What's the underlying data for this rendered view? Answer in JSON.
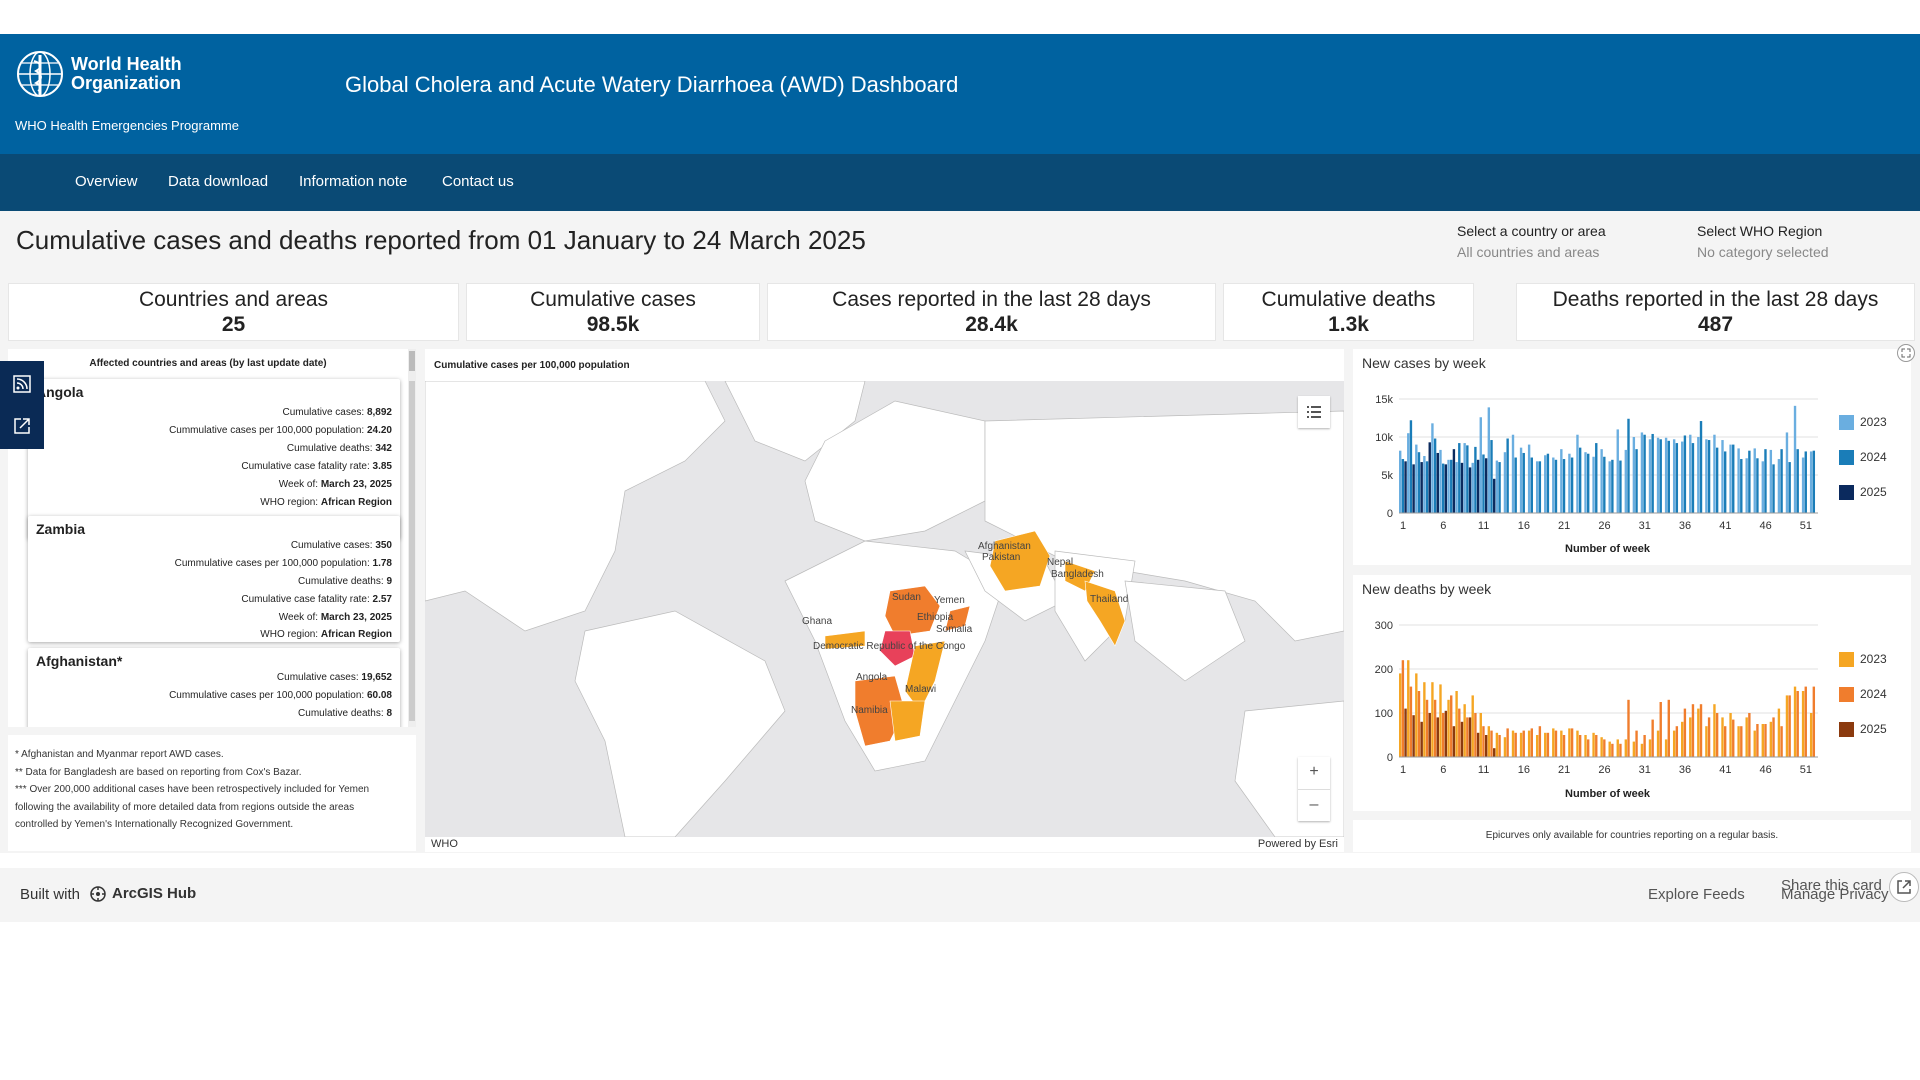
{
  "header": {
    "org_line1": "World Health",
    "org_line2": "Organization",
    "programme": "WHO Health Emergencies Programme",
    "title": "Global Cholera and Acute Watery Diarrhoea (AWD) Dashboard"
  },
  "nav": [
    "Overview",
    "Data download",
    "Information note",
    "Contact us"
  ],
  "page_title": "Cumulative cases and deaths reported from 01 January to 24 March 2025",
  "filters": {
    "country_label": "Select a country or area",
    "country_value": "All countries and areas",
    "region_label": "Select WHO Region",
    "region_value": "No category selected"
  },
  "stats": [
    {
      "label": "Countries and areas",
      "value": "25"
    },
    {
      "label": "Cumulative cases",
      "value": "98.5k"
    },
    {
      "label": "Cases reported in the last 28 days",
      "value": "28.4k"
    },
    {
      "label": "Cumulative deaths",
      "value": "1.3k"
    },
    {
      "label": "Deaths reported in the last 28 days",
      "value": "487"
    }
  ],
  "list": {
    "title": "Affected countries and areas (by last update date)",
    "cards": [
      {
        "name": "Angola",
        "cum_cases": "8,892",
        "per100k": "24.20",
        "deaths": "342",
        "cfr": "3.85",
        "week": "March 23, 2025",
        "region": "African Region"
      },
      {
        "name": "Zambia",
        "cum_cases": "350",
        "per100k": "1.78",
        "deaths": "9",
        "cfr": "2.57",
        "week": "March 23, 2025",
        "region": "African Region"
      },
      {
        "name": "Afghanistan*",
        "cum_cases": "19,652",
        "per100k": "60.08",
        "deaths": "8"
      }
    ],
    "labels": {
      "cum_cases": "Cumulative cases:",
      "per100k": "Cummulative cases per 100,000 population:",
      "deaths": "Cumulative deaths:",
      "cfr": "Cumulative case fatality rate:",
      "week": "Week of:",
      "region": "WHO region:"
    }
  },
  "notes": [
    "* Afghanistan and Myanmar report AWD cases.",
    "** Data for Bangladesh are based on reporting from Cox's Bazar.",
    "*** Over 200,000 additional cases have been retrospectively included for Yemen",
    "following the availability of more detailed data from regions outside the areas",
    "controlled by Yemen's Internationally Recognized Government."
  ],
  "map": {
    "title": "Cumulative cases per 100,000 population",
    "credit_left": "WHO",
    "credit_right": "Powered by Esri",
    "zoom_in": "+",
    "zoom_out": "–",
    "labels": [
      "Afghanistan",
      "Pakistan",
      "Nepal",
      "Bangladesh",
      "Thailand",
      "Sudan",
      "Yemen",
      "Ethiopia",
      "Somalia",
      "Ghana",
      "Democratic Republic of the Congo",
      "Angola",
      "Malawi",
      "Namibia"
    ],
    "colors": {
      "low": "#f5a623",
      "mid": "#f07d2d",
      "high": "#e8415a",
      "water": "#e6e6e8",
      "land": "#ffffff"
    }
  },
  "charts": {
    "cases": {
      "title": "New cases by week",
      "xlabel": "Number of week",
      "legend": [
        "2023",
        "2024",
        "2025"
      ]
    },
    "deaths": {
      "title": "New deaths by week",
      "xlabel": "Number of week",
      "legend": [
        "2023",
        "2024",
        "2025"
      ]
    },
    "note": "Epicurves only available for countries reporting on a regular basis."
  },
  "chart_data": [
    {
      "type": "bar",
      "title": "New cases by week",
      "xlabel": "Number of week",
      "ylabel": "",
      "ylim": [
        0,
        15000
      ],
      "yticks": [
        "0",
        "5k",
        "10k",
        "15k"
      ],
      "xticks": [
        "1",
        "6",
        "11",
        "16",
        "21",
        "26",
        "31",
        "36",
        "41",
        "46",
        "51"
      ],
      "colors": {
        "2023": "#6aaee0",
        "2024": "#1a7db8",
        "2025": "#0b2a5e"
      },
      "series": [
        {
          "name": "2023",
          "values": [
            8200,
            10500,
            9000,
            7500,
            11800,
            8300,
            7000,
            6700,
            9200,
            6600,
            12600,
            13900,
            6900,
            8000,
            10300,
            8600,
            9000,
            6800,
            7600,
            7300,
            8400,
            7800,
            10300,
            8000,
            7400,
            8400,
            6800,
            11000,
            8300,
            10000,
            10600,
            9700,
            9900,
            9900,
            9700,
            9400,
            10300,
            10000,
            9700,
            10300,
            9600,
            9000,
            8500,
            7200,
            8500,
            6800,
            8300,
            7100,
            10600,
            14100,
            7300,
            8100
          ]
        },
        {
          "name": "2024",
          "values": [
            7100,
            12200,
            8000,
            6800,
            9800,
            6500,
            7000,
            9200,
            8900,
            8700,
            7700,
            9600,
            6700,
            9800,
            7300,
            7900,
            7300,
            6800,
            7800,
            7000,
            7100,
            7300,
            8600,
            7800,
            9200,
            7400,
            7000,
            6900,
            12400,
            8400,
            10300,
            10400,
            9700,
            9500,
            9200,
            10200,
            9200,
            12100,
            9600,
            8600,
            8100,
            9000,
            7100,
            8200,
            7200,
            8400,
            6400,
            8400,
            6700,
            8400,
            8100,
            8200
          ]
        },
        {
          "name": "2025",
          "values": [
            6800,
            6400,
            6700,
            9300,
            7900,
            6400,
            8400,
            6600,
            6000,
            7000,
            7200,
            4500,
            0,
            0,
            0,
            0,
            0,
            0,
            0,
            0,
            0,
            0,
            0,
            0,
            0,
            0,
            0,
            0,
            0,
            0,
            0,
            0,
            0,
            0,
            0,
            0,
            0,
            0,
            0,
            0,
            0,
            0,
            0,
            0,
            0,
            0,
            0,
            0,
            0,
            0,
            0,
            0
          ]
        }
      ]
    },
    {
      "type": "bar",
      "title": "New deaths by week",
      "xlabel": "Number of week",
      "ylabel": "",
      "ylim": [
        0,
        300
      ],
      "yticks": [
        "0",
        "100",
        "200",
        "300"
      ],
      "xticks": [
        "1",
        "6",
        "11",
        "16",
        "21",
        "26",
        "31",
        "36",
        "41",
        "46",
        "51"
      ],
      "colors": {
        "2023": "#f5a623",
        "2024": "#f07d2d",
        "2025": "#8b3a0e"
      },
      "series": [
        {
          "name": "2023",
          "values": [
            190,
            220,
            190,
            170,
            170,
            165,
            130,
            150,
            120,
            140,
            100,
            70,
            55,
            45,
            60,
            55,
            60,
            50,
            55,
            65,
            60,
            65,
            60,
            50,
            55,
            45,
            35,
            40,
            40,
            35,
            30,
            40,
            60,
            40,
            60,
            80,
            90,
            110,
            70,
            120,
            90,
            100,
            70,
            90,
            60,
            75,
            80,
            110,
            140,
            160,
            150,
            100
          ]
        },
        {
          "name": "2024",
          "values": [
            220,
            160,
            150,
            130,
            130,
            100,
            140,
            110,
            90,
            100,
            70,
            60,
            50,
            65,
            55,
            60,
            65,
            70,
            55,
            60,
            50,
            65,
            50,
            40,
            50,
            40,
            30,
            30,
            130,
            60,
            50,
            85,
            125,
            130,
            70,
            110,
            120,
            120,
            90,
            100,
            70,
            85,
            70,
            100,
            75,
            75,
            90,
            70,
            140,
            150,
            160,
            160
          ]
        },
        {
          "name": "2025",
          "values": [
            110,
            95,
            80,
            100,
            90,
            105,
            70,
            80,
            90,
            55,
            50,
            20,
            0,
            0,
            0,
            0,
            0,
            0,
            0,
            0,
            0,
            0,
            0,
            0,
            0,
            0,
            0,
            0,
            0,
            0,
            0,
            0,
            0,
            0,
            0,
            0,
            0,
            0,
            0,
            0,
            0,
            0,
            0,
            0,
            0,
            0,
            0,
            0,
            0,
            0,
            0,
            0
          ]
        }
      ]
    }
  ],
  "footer": {
    "built_with": "Built with",
    "hub": "ArcGIS Hub",
    "explore": "Explore Feeds",
    "share": "Share this card",
    "privacy": "Manage Privacy"
  }
}
